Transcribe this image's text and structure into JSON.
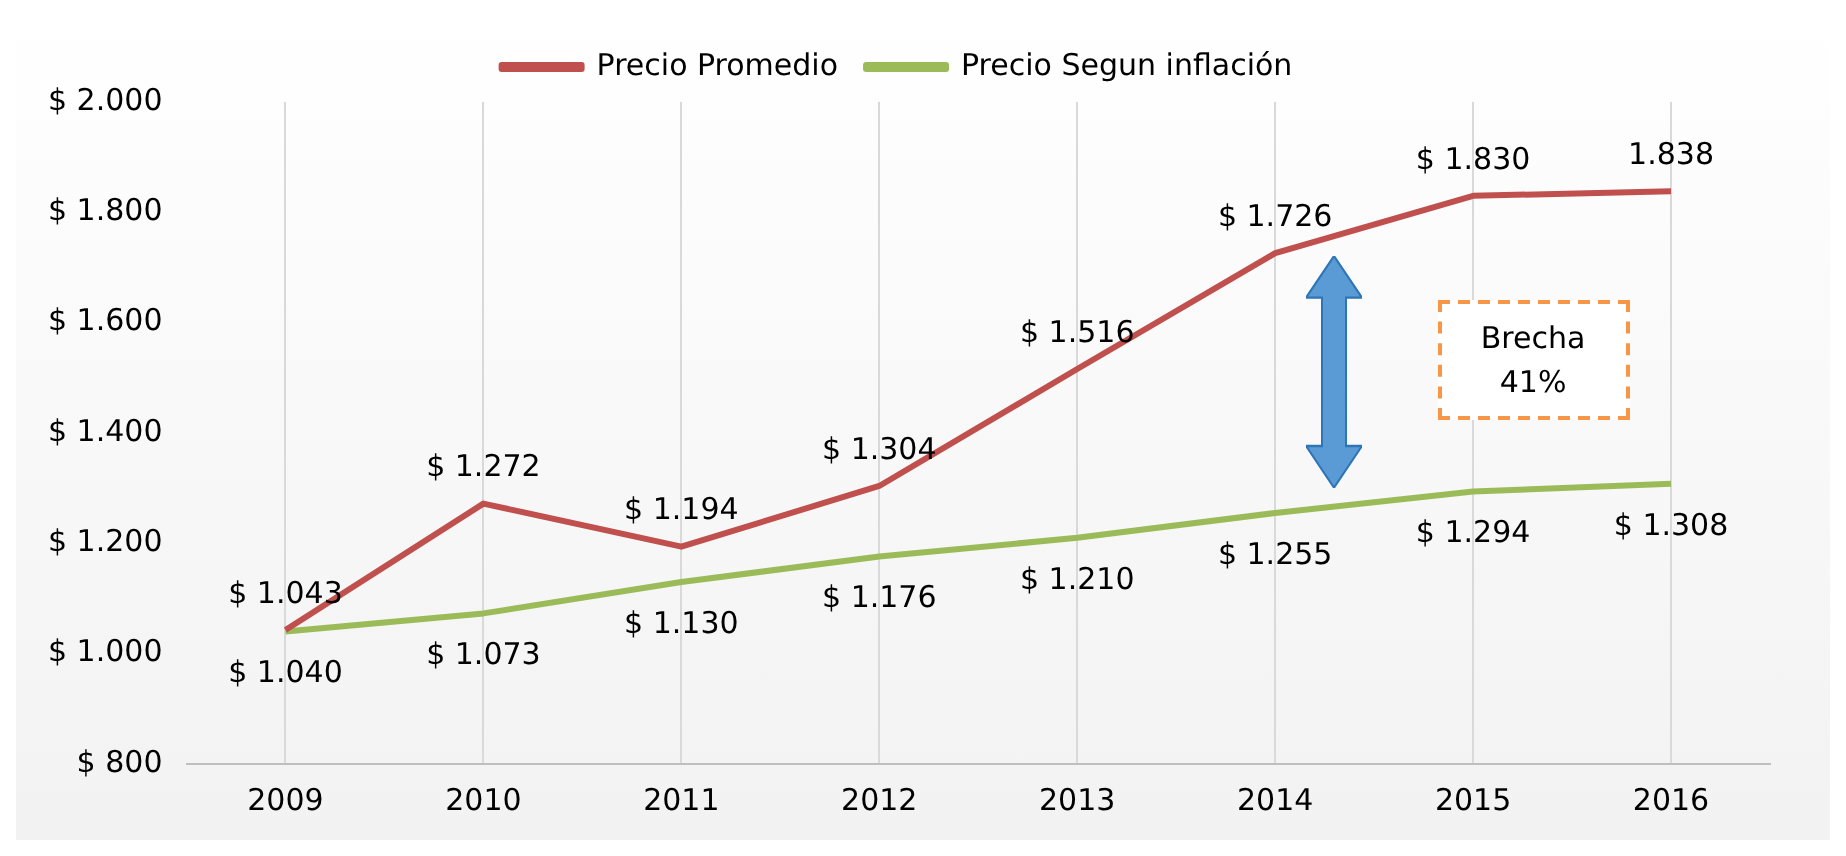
{
  "chart_data": {
    "type": "line",
    "categories": [
      "2009",
      "2010",
      "2011",
      "2012",
      "2013",
      "2014",
      "2015",
      "2016"
    ],
    "series": [
      {
        "name": "Precio Promedio",
        "color": "#c0504d",
        "values": [
          1043,
          1272,
          1194,
          1304,
          1516,
          1726,
          1830,
          1838
        ],
        "value_labels": [
          "$ 1.043",
          "$ 1.272",
          "$ 1.194",
          "$ 1.304",
          "$ 1.516",
          "$ 1.726",
          "$ 1.830",
          "1.838"
        ]
      },
      {
        "name": "Precio Segun inflación",
        "color": "#9bbb59",
        "values": [
          1040,
          1073,
          1130,
          1176,
          1210,
          1255,
          1294,
          1308
        ],
        "value_labels": [
          "$ 1.040",
          "$ 1.073",
          "$ 1.130",
          "$ 1.176",
          "$ 1.210",
          "$ 1.255",
          "$ 1.294",
          "$ 1.308"
        ]
      }
    ],
    "ylim": [
      800,
      2000
    ],
    "yticks": [
      {
        "value": 800,
        "label": "$ 800"
      },
      {
        "value": 1000,
        "label": "$ 1.000"
      },
      {
        "value": 1200,
        "label": "$ 1.200"
      },
      {
        "value": 1400,
        "label": "$ 1.400"
      },
      {
        "value": 1600,
        "label": "$ 1.600"
      },
      {
        "value": 1800,
        "label": "$ 1.800"
      },
      {
        "value": 2000,
        "label": "$ 2.000"
      }
    ],
    "grid": "x",
    "legend": "top",
    "marker": "none",
    "line_style": "solid",
    "annotations": [
      "Brecha 41%"
    ]
  }
}
